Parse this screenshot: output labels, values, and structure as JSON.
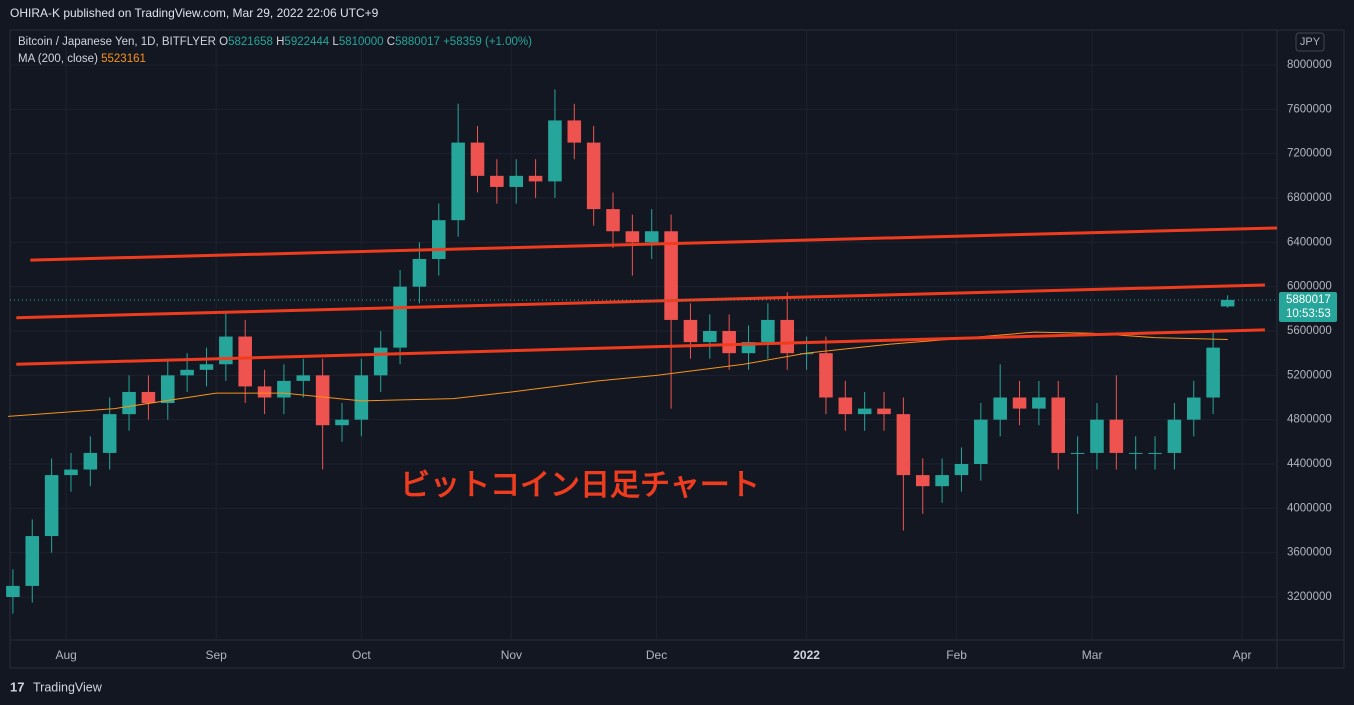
{
  "header": {
    "text": "OHIRA-K published on TradingView.com, Mar 29, 2022 22:06 UTC+9"
  },
  "footer": {
    "brand": "TradingView"
  },
  "chart_data": {
    "type": "candlestick",
    "symbol": "Bitcoin / Japanese Yen, 1D, BITFLYER",
    "ohlc_letters": [
      "O",
      "H",
      "L",
      "C"
    ],
    "change_label": "+58359 (+1.00%)",
    "currency": "JPY",
    "countdown": "10:53:53",
    "annotation": "ビットコイン日足チャート",
    "up_color": "#26a69a",
    "down_color": "#ef5350",
    "x": [
      -11,
      -7,
      -3,
      1,
      5,
      9,
      13,
      17,
      21,
      25,
      29,
      33,
      37,
      41,
      45,
      49,
      53,
      57,
      61,
      65,
      69,
      73,
      77,
      81,
      85,
      89,
      93,
      97,
      101,
      105,
      109,
      113,
      117,
      121,
      125,
      129,
      133,
      137,
      141,
      145,
      149,
      153,
      157,
      161,
      165,
      169,
      173,
      177,
      181,
      185,
      189,
      193,
      197,
      201,
      205,
      209,
      213,
      217,
      221,
      225,
      229,
      233,
      237,
      240
    ],
    "open": [
      3200000,
      3300000,
      3750000,
      4300000,
      4350000,
      4500000,
      4850000,
      5050000,
      4950000,
      5200000,
      5250000,
      5300000,
      5550000,
      5100000,
      5000000,
      5150000,
      5200000,
      4750000,
      4800000,
      5200000,
      5450000,
      6000000,
      6250000,
      6600000,
      7300000,
      7000000,
      6900000,
      7000000,
      6950000,
      7500000,
      7300000,
      6700000,
      6500000,
      6400000,
      6500000,
      5700000,
      5500000,
      5600000,
      5400000,
      5500000,
      5700000,
      5400000,
      5400000,
      5000000,
      4850000,
      4900000,
      4850000,
      4300000,
      4200000,
      4300000,
      4400000,
      4800000,
      5000000,
      4900000,
      5000000,
      4500000,
      4500000,
      4800000,
      4500000,
      4500000,
      4500000,
      4800000,
      5000000,
      5821658
    ],
    "high": [
      3450000,
      3900000,
      4450000,
      4500000,
      4650000,
      5000000,
      5200000,
      5200000,
      5350000,
      5400000,
      5450000,
      5780000,
      5700000,
      5250000,
      5300000,
      5350000,
      5350000,
      4950000,
      5350000,
      5600000,
      6150000,
      6400000,
      6750000,
      7650000,
      7450000,
      7150000,
      7150000,
      7150000,
      7780000,
      7650000,
      7450000,
      6850000,
      6650000,
      6700000,
      6650000,
      5850000,
      5750000,
      5750000,
      5650000,
      5850000,
      5950000,
      5550000,
      5550000,
      5150000,
      5050000,
      5050000,
      5000000,
      4450000,
      4450000,
      4550000,
      4950000,
      5300000,
      5150000,
      5150000,
      5150000,
      4650000,
      4950000,
      5200000,
      4650000,
      4650000,
      4950000,
      5150000,
      5600000,
      5922444
    ],
    "low": [
      3050000,
      3150000,
      3600000,
      4150000,
      4200000,
      4350000,
      4700000,
      4800000,
      4800000,
      5050000,
      5100000,
      5150000,
      4950000,
      4850000,
      4850000,
      5000000,
      4350000,
      4600000,
      4650000,
      5050000,
      5300000,
      5850000,
      6100000,
      6450000,
      6850000,
      6750000,
      6750000,
      6800000,
      6800000,
      7150000,
      6550000,
      6350000,
      6100000,
      6250000,
      4900000,
      5350000,
      5350000,
      5250000,
      5250000,
      5350000,
      5250000,
      5250000,
      4850000,
      4700000,
      4700000,
      4700000,
      3800000,
      3950000,
      4050000,
      4150000,
      4250000,
      4650000,
      4750000,
      4750000,
      4350000,
      3950000,
      4350000,
      4350000,
      4350000,
      4350000,
      4350000,
      4650000,
      4850000,
      5810000
    ],
    "close": [
      3300000,
      3750000,
      4300000,
      4350000,
      4500000,
      4850000,
      5050000,
      4950000,
      5200000,
      5250000,
      5300000,
      5550000,
      5100000,
      5000000,
      5150000,
      5200000,
      4750000,
      4800000,
      5200000,
      5450000,
      6000000,
      6250000,
      6600000,
      7300000,
      7000000,
      6900000,
      7000000,
      6950000,
      7500000,
      7300000,
      6700000,
      6500000,
      6400000,
      6500000,
      5700000,
      5500000,
      5600000,
      5400000,
      5500000,
      5700000,
      5400000,
      5400000,
      5000000,
      4850000,
      4900000,
      4850000,
      4300000,
      4200000,
      4300000,
      4400000,
      4800000,
      5000000,
      4900000,
      5000000,
      4500000,
      4500000,
      4800000,
      4500000,
      4500000,
      4500000,
      4800000,
      5000000,
      5450000,
      5880017
    ],
    "ma": {
      "name": "MA (200, close)",
      "color": "#f7931a",
      "x": [
        -12,
        10,
        31,
        45,
        61,
        80,
        92,
        110,
        122,
        140,
        153,
        170,
        184,
        200,
        212,
        225,
        240
      ],
      "values": [
        4830000,
        4900000,
        5040000,
        5040000,
        4970000,
        4990000,
        5050000,
        5150000,
        5200000,
        5300000,
        5400000,
        5480000,
        5530000,
        5590000,
        5580000,
        5540000,
        5523161
      ]
    },
    "trendlines": [
      {
        "color": "#f03c1e",
        "x": [
          -7.4,
          250.2
        ],
        "values": [
          6240000,
          6530000
        ]
      },
      {
        "color": "#f03c1e",
        "x": [
          -10.3,
          247.7
        ],
        "values": [
          5720000,
          6015000
        ]
      },
      {
        "color": "#f03c1e",
        "x": [
          -10.3,
          247.7
        ],
        "values": [
          5300000,
          5610000
        ]
      }
    ],
    "xlim": [
      -11.6,
      250.2
    ],
    "ylim": [
      2812000,
      8316000
    ],
    "xticks": [
      {
        "value": 0,
        "label": "Aug"
      },
      {
        "value": 31,
        "label": "Sep"
      },
      {
        "value": 61,
        "label": "Oct"
      },
      {
        "value": 92,
        "label": "Nov"
      },
      {
        "value": 122,
        "label": "Dec"
      },
      {
        "value": 153,
        "label": "2022"
      },
      {
        "value": 184,
        "label": "Feb"
      },
      {
        "value": 212,
        "label": "Mar"
      },
      {
        "value": 243,
        "label": "Apr"
      }
    ],
    "yticks": [
      3200000,
      3600000,
      4000000,
      4400000,
      4800000,
      5200000,
      5600000,
      6000000,
      6400000,
      6800000,
      7200000,
      7600000,
      8000000
    ],
    "grid": true
  }
}
